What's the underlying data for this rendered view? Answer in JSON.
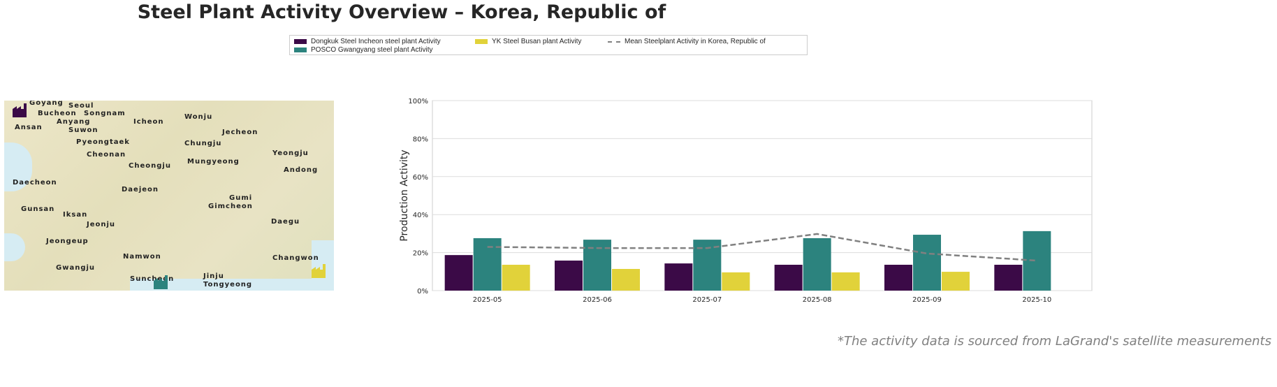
{
  "title": "Steel Plant Activity Overview – Korea, Republic of",
  "legend": [
    {
      "label": "Dongkuk Steel Incheon steel plant Activity",
      "color": "#3b0a47"
    },
    {
      "label": "POSCO Gwangyang steel plant Activity",
      "color": "#2c837e"
    },
    {
      "label": "YK Steel Busan plant Activity",
      "color": "#e1d23a"
    },
    {
      "label": "Mean Steelplant Activity in Korea, Republic of",
      "color": "#808080"
    }
  ],
  "map": {
    "cities": [
      "Goyang",
      "Seoul",
      "Bucheon",
      "Songnam",
      "Anyang",
      "Icheon",
      "Wonju",
      "Ansan",
      "Suwon",
      "Jecheon",
      "Pyeongtaek",
      "Chungju",
      "Cheonan",
      "Yeongju",
      "Cheongju",
      "Mungyeong",
      "Andong",
      "Daecheon",
      "Daejeon",
      "Gumi",
      "Gimcheon",
      "Gunsan",
      "Iksan",
      "Jeonju",
      "Daegu",
      "Jeongeup",
      "Namwon",
      "Gwangju",
      "Suncheon",
      "Jinju",
      "Changwon",
      "Tongyeong"
    ]
  },
  "chart_data": {
    "type": "bar",
    "categories": [
      "2025-05",
      "2025-06",
      "2025-07",
      "2025-08",
      "2025-09",
      "2025-10"
    ],
    "series": [
      {
        "name": "Dongkuk Steel Incheon steel plant Activity",
        "values": [
          18.7,
          15.8,
          14.3,
          13.6,
          13.6,
          13.6
        ]
      },
      {
        "name": "POSCO Gwangyang steel plant Activity",
        "values": [
          27.6,
          26.8,
          26.8,
          27.6,
          29.4,
          31.3
        ]
      },
      {
        "name": "YK Steel Busan plant Activity",
        "values": [
          13.6,
          11.4,
          9.6,
          9.6,
          9.9,
          null
        ]
      },
      {
        "name": "Mean Steelplant Activity in Korea, Republic of",
        "type": "line",
        "values": [
          23.0,
          22.4,
          22.4,
          29.8,
          19.5,
          15.8
        ]
      }
    ],
    "ylabel": "Production Activity",
    "ylim": [
      0,
      100
    ],
    "yticks": [
      "0%",
      "20%",
      "40%",
      "60%",
      "80%",
      "100%"
    ],
    "grid": true
  },
  "footnote": "*The activity data is sourced from LaGrand's satellite measurements"
}
